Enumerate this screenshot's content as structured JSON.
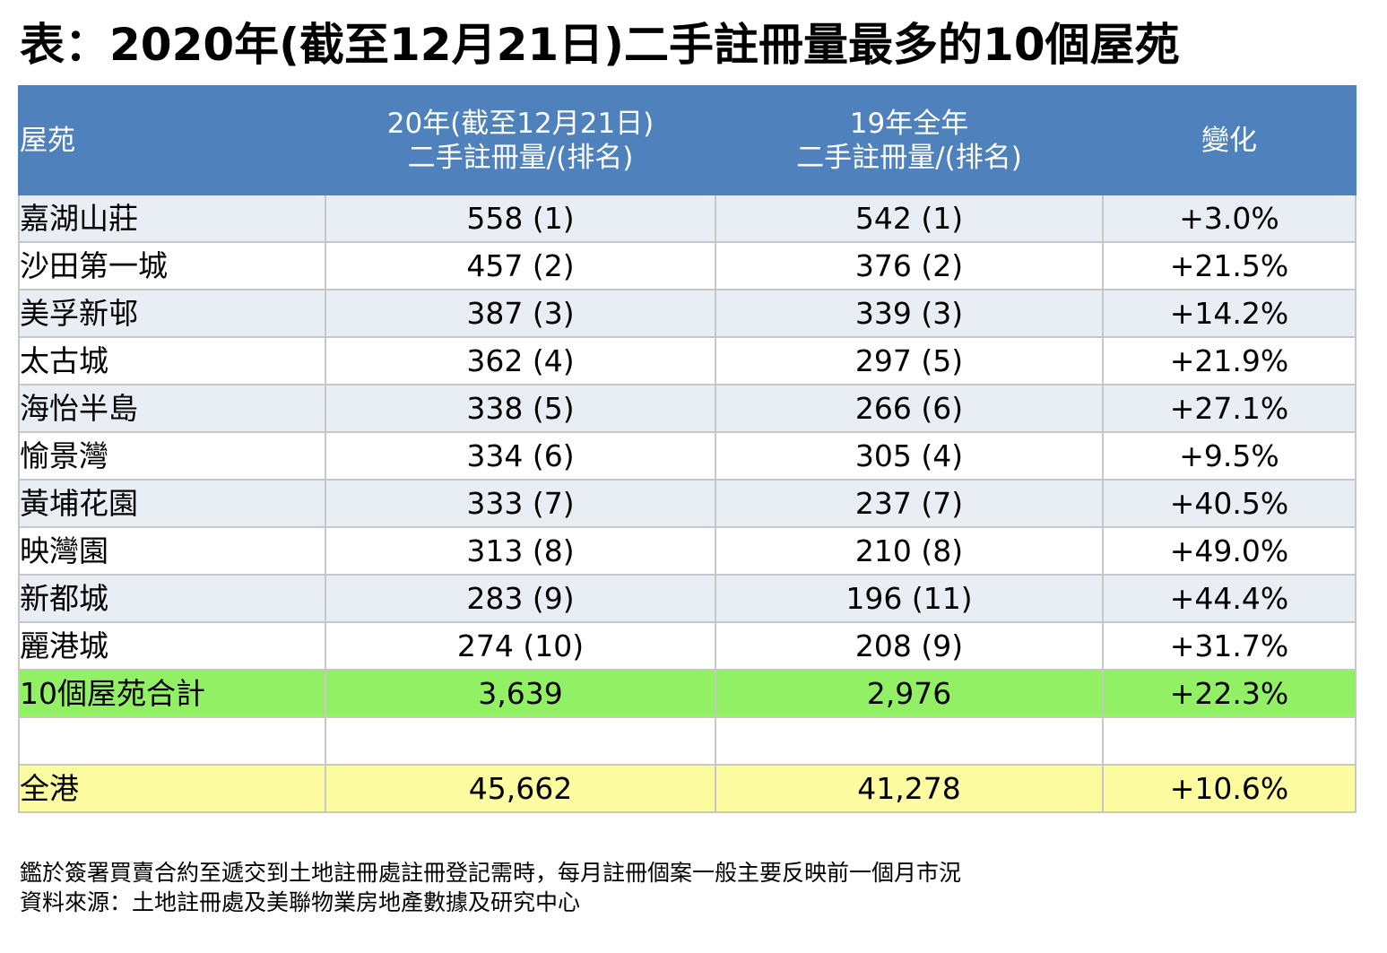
{
  "title": "表：2020年(截至12月21日)二手註冊量最多的10個屋苑",
  "table": {
    "headers": {
      "estate": "屋苑",
      "y2020_line1": "20年(截至12月21日)",
      "y2020_line2": "二手註冊量/(排名)",
      "y2019_line1": "19年全年",
      "y2019_line2": "二手註冊量/(排名)",
      "change": "變化"
    },
    "rows": [
      {
        "estate": "嘉湖山莊",
        "y2020": "558 (1)",
        "y2019": "542 (1)",
        "change": "+3.0%"
      },
      {
        "estate": "沙田第一城",
        "y2020": "457 (2)",
        "y2019": "376 (2)",
        "change": "+21.5%"
      },
      {
        "estate": "美孚新邨",
        "y2020": "387 (3)",
        "y2019": "339 (3)",
        "change": "+14.2%"
      },
      {
        "estate": "太古城",
        "y2020": "362 (4)",
        "y2019": "297 (5)",
        "change": "+21.9%"
      },
      {
        "estate": "海怡半島",
        "y2020": "338 (5)",
        "y2019": "266 (6)",
        "change": "+27.1%"
      },
      {
        "estate": "愉景灣",
        "y2020": "334 (6)",
        "y2019": "305 (4)",
        "change": "+9.5%"
      },
      {
        "estate": "黃埔花園",
        "y2020": "333 (7)",
        "y2019": "237 (7)",
        "change": "+40.5%"
      },
      {
        "estate": "映灣園",
        "y2020": "313 (8)",
        "y2019": "210 (8)",
        "change": "+49.0%"
      },
      {
        "estate": "新都城",
        "y2020": "283 (9)",
        "y2019": "196 (11)",
        "change": "+44.4%"
      },
      {
        "estate": "麗港城",
        "y2020": "274 (10)",
        "y2019": "208 (9)",
        "change": "+31.7%"
      }
    ],
    "subtotal": {
      "estate": "10個屋苑合計",
      "y2020": "3,639",
      "y2019": "2,976",
      "change": "+22.3%"
    },
    "total": {
      "estate": "全港",
      "y2020": "45,662",
      "y2019": "41,278",
      "change": "+10.6%"
    }
  },
  "notes": {
    "line1": "鑑於簽署買賣合約至遞交到土地註冊處註冊登記需時，每月註冊個案一般主要反映前一個月市況",
    "line2": "資料來源：土地註冊處及美聯物業房地產數據及研究中心"
  },
  "colors": {
    "header": "#4f81bd",
    "row_odd": "#e9edf4",
    "subtotal": "#92f064",
    "total": "#fdfb9f"
  }
}
